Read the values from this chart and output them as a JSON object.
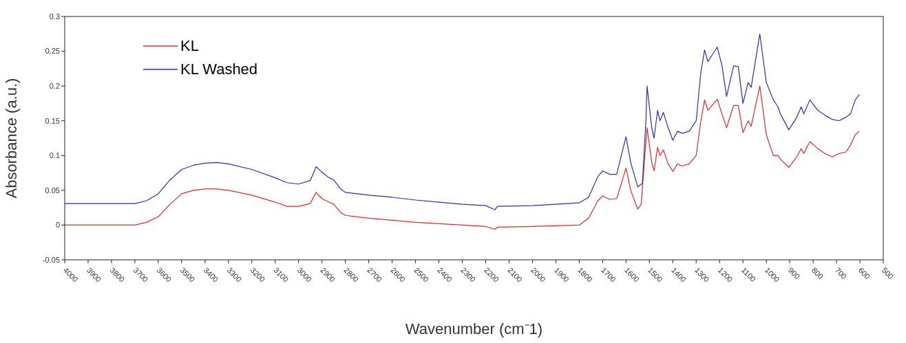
{
  "chart_data": {
    "type": "line",
    "xlabel": "Wavenumber (cm⁻1)",
    "ylabel": "Absorbance (a.u.)",
    "xlim": [
      4000,
      500
    ],
    "xticks": [
      4000,
      3900,
      3800,
      3700,
      3600,
      3500,
      3400,
      3300,
      3200,
      3100,
      3000,
      2900,
      2800,
      2700,
      2600,
      2500,
      2400,
      2300,
      2200,
      2100,
      2000,
      1900,
      1800,
      1700,
      1600,
      1500,
      1400,
      1300,
      1200,
      1100,
      1000,
      900,
      800,
      700,
      600,
      500
    ],
    "ylim": [
      -0.05,
      0.3
    ],
    "yticks": [
      -0.05,
      0,
      0.05,
      0.1,
      0.15,
      0.2,
      0.25,
      0.3
    ],
    "grid": false,
    "legend": "top left",
    "marker": "none",
    "line_style": "solid",
    "series": [
      {
        "name": "KL",
        "color": "#e8262a",
        "x": [
          4000,
          3700,
          3650,
          3600,
          3550,
          3500,
          3450,
          3400,
          3350,
          3300,
          3200,
          3100,
          3050,
          3000,
          2950,
          2925,
          2900,
          2870,
          2850,
          2820,
          2800,
          2700,
          2600,
          2500,
          2400,
          2300,
          2200,
          2160,
          2150,
          2000,
          1900,
          1800,
          1760,
          1720,
          1700,
          1670,
          1640,
          1600,
          1580,
          1550,
          1535,
          1515,
          1510,
          1490,
          1480,
          1465,
          1455,
          1440,
          1420,
          1400,
          1380,
          1360,
          1330,
          1300,
          1280,
          1264,
          1250,
          1210,
          1190,
          1170,
          1140,
          1120,
          1100,
          1078,
          1065,
          1028,
          1000,
          970,
          950,
          940,
          904,
          870,
          851,
          840,
          814,
          780,
          750,
          718,
          690,
          660,
          640,
          620,
          602
        ],
        "values": [
          0,
          0,
          0.004,
          0.012,
          0.03,
          0.045,
          0.05,
          0.052,
          0.052,
          0.05,
          0.043,
          0.033,
          0.027,
          0.027,
          0.031,
          0.047,
          0.038,
          0.033,
          0.03,
          0.018,
          0.014,
          0.01,
          0.007,
          0.004,
          0.002,
          0,
          -0.002,
          -0.006,
          -0.003,
          -0.002,
          -0.001,
          0,
          0.01,
          0.035,
          0.042,
          0.037,
          0.038,
          0.082,
          0.05,
          0.023,
          0.03,
          0.12,
          0.14,
          0.09,
          0.078,
          0.112,
          0.1,
          0.108,
          0.088,
          0.077,
          0.088,
          0.085,
          0.088,
          0.1,
          0.15,
          0.18,
          0.165,
          0.181,
          0.16,
          0.14,
          0.172,
          0.172,
          0.133,
          0.15,
          0.142,
          0.2,
          0.13,
          0.1,
          0.1,
          0.095,
          0.083,
          0.098,
          0.11,
          0.103,
          0.12,
          0.11,
          0.103,
          0.098,
          0.103,
          0.105,
          0.115,
          0.13,
          0.135
        ]
      },
      {
        "name": "KL Washed",
        "color": "#2b2fb8",
        "x": [
          4000,
          3700,
          3650,
          3600,
          3550,
          3500,
          3450,
          3400,
          3350,
          3300,
          3200,
          3100,
          3050,
          3000,
          2950,
          2925,
          2900,
          2870,
          2850,
          2820,
          2800,
          2700,
          2600,
          2500,
          2400,
          2300,
          2200,
          2160,
          2150,
          2000,
          1900,
          1800,
          1760,
          1720,
          1700,
          1670,
          1640,
          1600,
          1580,
          1550,
          1530,
          1515,
          1510,
          1490,
          1480,
          1465,
          1455,
          1440,
          1420,
          1400,
          1380,
          1360,
          1330,
          1300,
          1280,
          1264,
          1250,
          1210,
          1190,
          1170,
          1140,
          1120,
          1100,
          1078,
          1065,
          1028,
          1000,
          970,
          950,
          940,
          904,
          870,
          851,
          840,
          814,
          780,
          750,
          718,
          690,
          660,
          640,
          620,
          602
        ],
        "values": [
          0.031,
          0.031,
          0.035,
          0.045,
          0.065,
          0.08,
          0.086,
          0.089,
          0.09,
          0.088,
          0.08,
          0.068,
          0.061,
          0.059,
          0.064,
          0.084,
          0.076,
          0.068,
          0.065,
          0.052,
          0.047,
          0.043,
          0.04,
          0.036,
          0.033,
          0.03,
          0.028,
          0.022,
          0.027,
          0.028,
          0.03,
          0.032,
          0.04,
          0.07,
          0.078,
          0.073,
          0.073,
          0.127,
          0.09,
          0.055,
          0.06,
          0.15,
          0.2,
          0.14,
          0.125,
          0.165,
          0.15,
          0.162,
          0.14,
          0.122,
          0.135,
          0.132,
          0.135,
          0.15,
          0.22,
          0.252,
          0.235,
          0.256,
          0.23,
          0.185,
          0.229,
          0.228,
          0.175,
          0.205,
          0.198,
          0.275,
          0.205,
          0.18,
          0.17,
          0.16,
          0.137,
          0.155,
          0.17,
          0.16,
          0.18,
          0.165,
          0.158,
          0.152,
          0.15,
          0.155,
          0.16,
          0.18,
          0.188
        ]
      }
    ]
  }
}
